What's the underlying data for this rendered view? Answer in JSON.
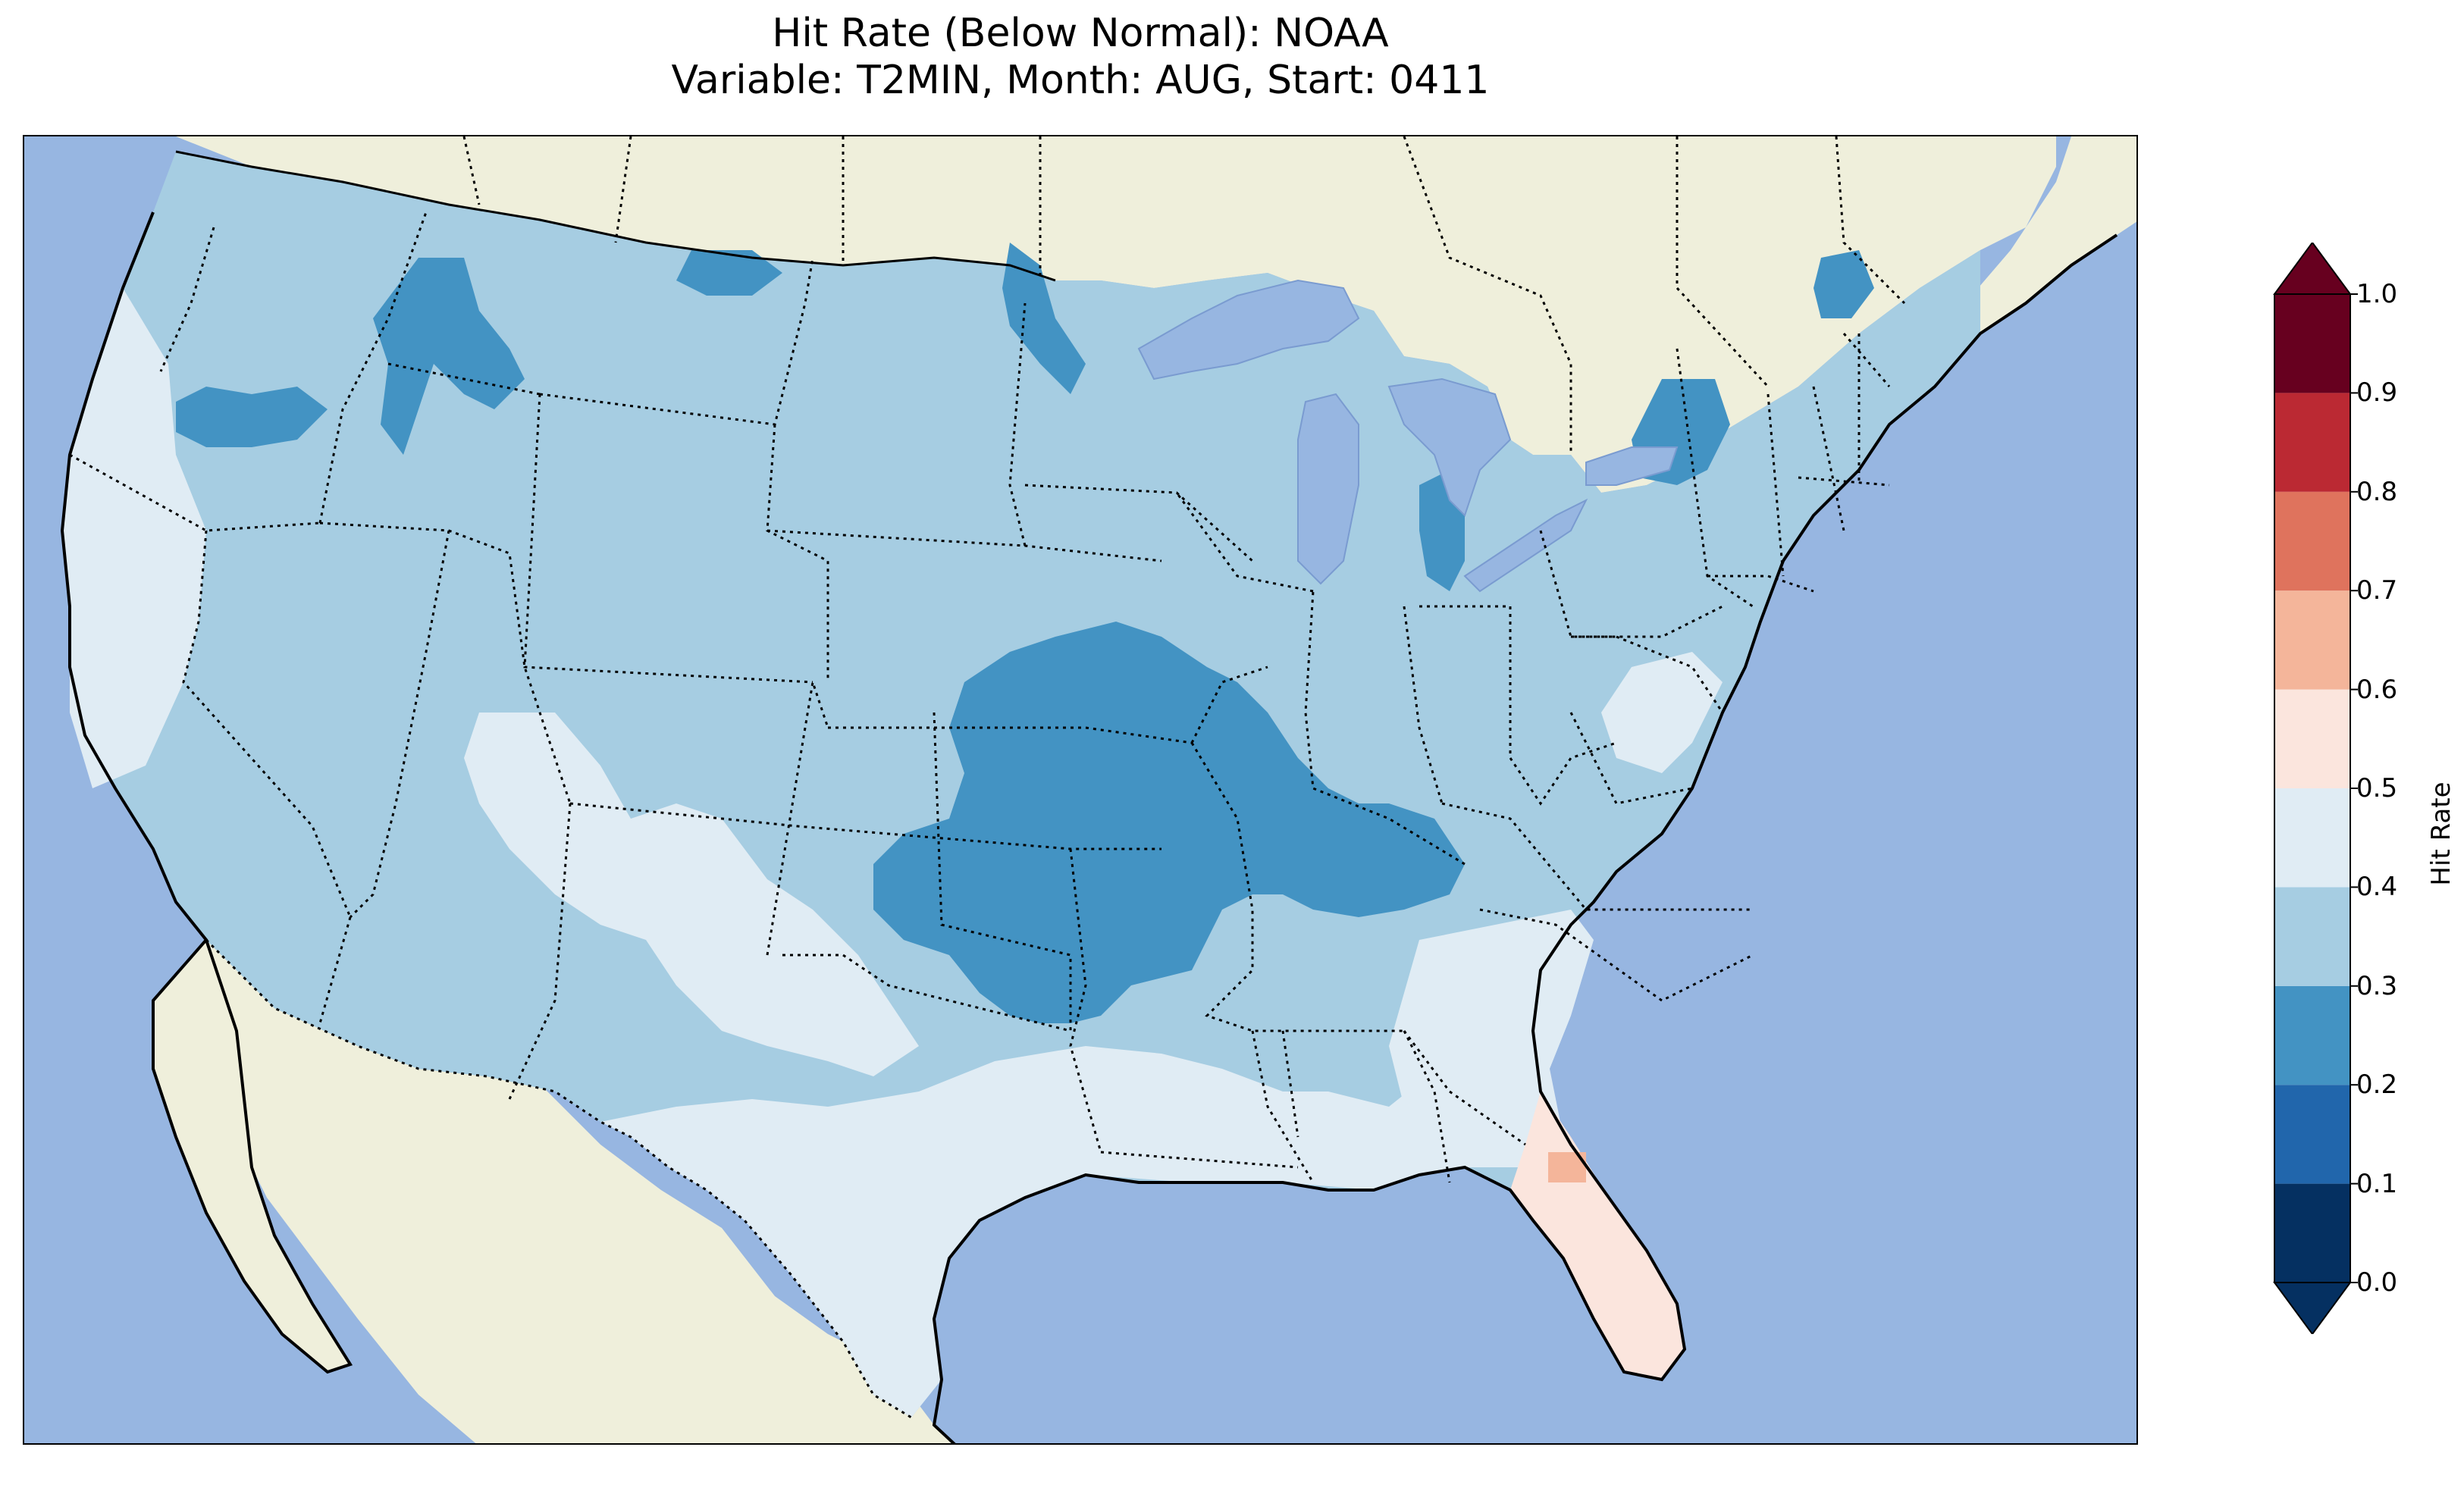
{
  "title": {
    "line1": "Hit Rate (Below Normal): NOAA",
    "line2": "Variable: T2MIN, Month: AUG, Start: 0411"
  },
  "colors": {
    "ocean": "#97b6e1",
    "land": "#efefdb",
    "lakes": "#97b6e1"
  },
  "colorbar": {
    "label": "Hit Rate",
    "ticks": [
      "0.0",
      "0.1",
      "0.2",
      "0.3",
      "0.4",
      "0.5",
      "0.6",
      "0.7",
      "0.8",
      "0.9",
      "1.0"
    ],
    "bins": [
      {
        "from": 0.0,
        "to": 0.1,
        "color": "#053061"
      },
      {
        "from": 0.1,
        "to": 0.2,
        "color": "#2166ac"
      },
      {
        "from": 0.2,
        "to": 0.3,
        "color": "#4393c3"
      },
      {
        "from": 0.3,
        "to": 0.4,
        "color": "#a6cde2"
      },
      {
        "from": 0.4,
        "to": 0.5,
        "color": "#e0ecf4"
      },
      {
        "from": 0.5,
        "to": 0.6,
        "color": "#fbe5dd"
      },
      {
        "from": 0.6,
        "to": 0.7,
        "color": "#f4b59a"
      },
      {
        "from": 0.7,
        "to": 0.8,
        "color": "#df735d"
      },
      {
        "from": 0.8,
        "to": 0.9,
        "color": "#bb2933"
      },
      {
        "from": 0.9,
        "to": 1.0,
        "color": "#67001f"
      }
    ],
    "under_color": "#053061",
    "over_color": "#67001f"
  },
  "regions": [
    {
      "name": "west-coast-band",
      "hit_rate_bin": "0.4-0.5"
    },
    {
      "name": "interior-west",
      "hit_rate_bin": "0.3-0.4"
    },
    {
      "name": "central-plains-midwest",
      "hit_rate_bin": "0.2-0.3"
    },
    {
      "name": "southern-gulf-coast",
      "hit_rate_bin": "0.4-0.5"
    },
    {
      "name": "florida-peninsula",
      "hit_rate_bin": "0.5-0.6"
    },
    {
      "name": "central-florida-spot",
      "hit_rate_bin": "0.6-0.7"
    }
  ]
}
